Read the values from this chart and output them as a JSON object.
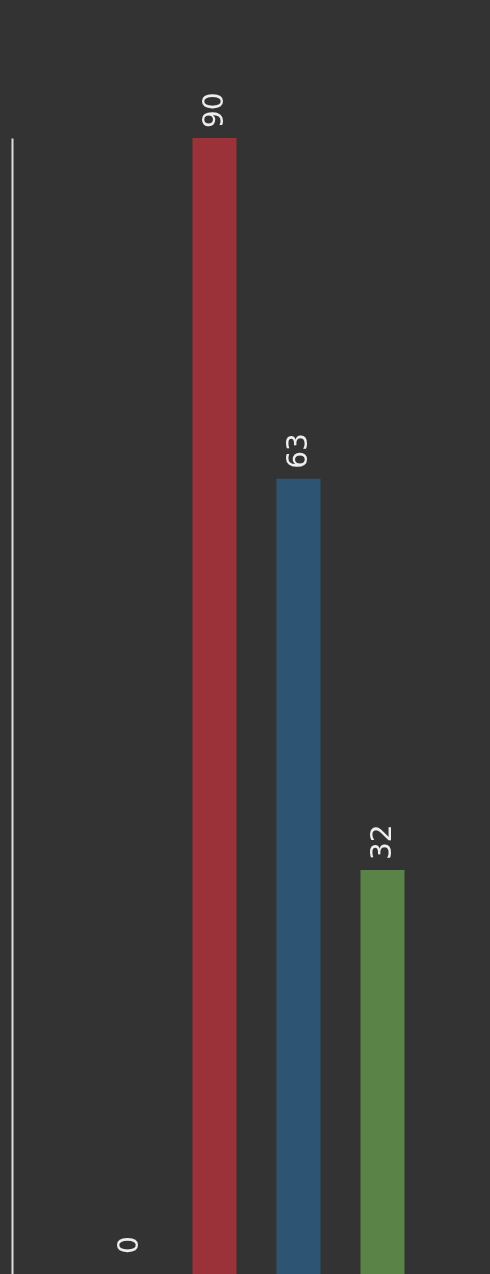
{
  "chart_data": {
    "type": "bar",
    "categories": [
      null,
      null,
      null
    ],
    "values": [
      90,
      63,
      32
    ],
    "colors": [
      "#9b3139",
      "#2d5573",
      "#5a8447"
    ],
    "data_labels": true,
    "annotations": [
      "0"
    ]
  }
}
